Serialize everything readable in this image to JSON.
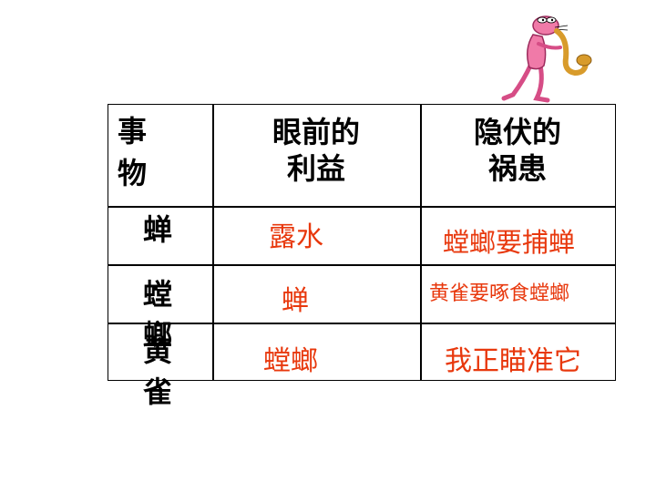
{
  "header": {
    "col1": "事\n物",
    "col2": "眼前的\n利益",
    "col3": "隐伏的\n祸患"
  },
  "rows": [
    {
      "subject": "蝉",
      "benefit": "露水",
      "danger": "螳螂要捕蝉"
    },
    {
      "subject": "螳\n螂",
      "benefit": "蝉",
      "danger": "黄雀要啄食螳螂"
    },
    {
      "subject": "黄\n雀",
      "benefit": "螳螂",
      "danger": "我正瞄准它"
    }
  ],
  "colors": {
    "accent": "#e8380d",
    "panther": "#f07aa8",
    "sax": "#d89b2b"
  }
}
